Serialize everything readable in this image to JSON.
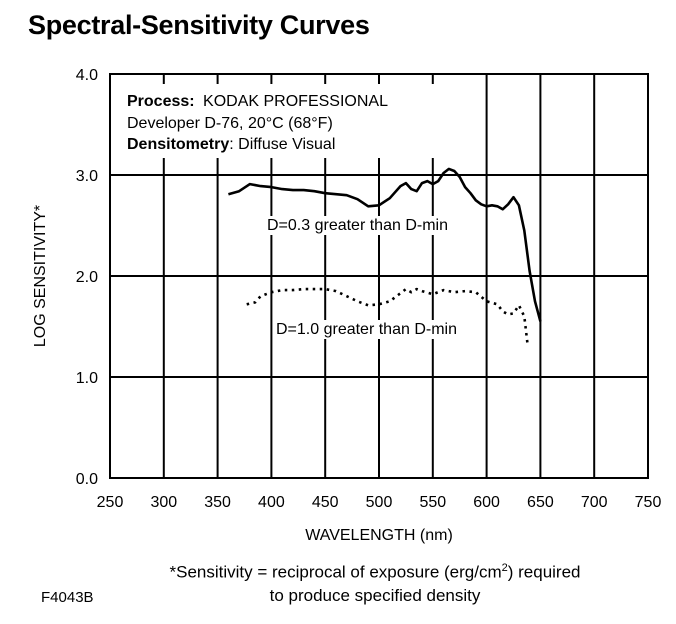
{
  "chart_data": {
    "type": "line",
    "title": "Spectral-Sensitivity Curves",
    "xlabel": "WAVELENGTH (nm)",
    "ylabel": "LOG SENSITIVITY*",
    "xlim": [
      250,
      750
    ],
    "ylim": [
      0.0,
      4.0
    ],
    "xticks": [
      250,
      300,
      350,
      400,
      450,
      500,
      550,
      600,
      650,
      700,
      750
    ],
    "yticks": [
      0.0,
      1.0,
      2.0,
      3.0,
      4.0
    ],
    "xtick_labels": [
      "250",
      "300",
      "350",
      "400",
      "450",
      "500",
      "550",
      "600",
      "650",
      "700",
      "750"
    ],
    "ytick_labels": [
      "0.0",
      "1.0",
      "2.0",
      "3.0",
      "4.0"
    ],
    "grid": true,
    "info_box": {
      "process_label": "Process:",
      "process_value": "KODAK PROFESSIONAL",
      "process_line2": "Developer D-76, 20°C (68°F)",
      "densitometry_label": "Densitometry",
      "densitometry_value": ": Diffuse Visual"
    },
    "series": [
      {
        "label": "D=0.3 greater than D-min",
        "line_style": "solid",
        "x": [
          360,
          370,
          380,
          390,
          400,
          410,
          420,
          430,
          440,
          450,
          460,
          470,
          480,
          490,
          500,
          510,
          515,
          520,
          525,
          530,
          535,
          540,
          545,
          550,
          555,
          560,
          565,
          570,
          575,
          580,
          585,
          590,
          595,
          600,
          605,
          610,
          615,
          620,
          625,
          630,
          635,
          640,
          645,
          650
        ],
        "y": [
          2.81,
          2.84,
          2.91,
          2.89,
          2.88,
          2.86,
          2.85,
          2.85,
          2.84,
          2.82,
          2.81,
          2.8,
          2.76,
          2.69,
          2.7,
          2.77,
          2.83,
          2.89,
          2.92,
          2.86,
          2.84,
          2.92,
          2.94,
          2.91,
          2.94,
          3.02,
          3.06,
          3.04,
          2.98,
          2.88,
          2.82,
          2.75,
          2.71,
          2.69,
          2.7,
          2.69,
          2.66,
          2.71,
          2.78,
          2.7,
          2.45,
          2.05,
          1.75,
          1.55
        ]
      },
      {
        "label": "D=1.0 greater than D-min",
        "line_style": "dotted",
        "x": [
          377,
          385,
          390,
          400,
          410,
          420,
          430,
          440,
          450,
          460,
          470,
          480,
          490,
          500,
          510,
          520,
          525,
          530,
          535,
          540,
          550,
          560,
          570,
          580,
          590,
          600,
          610,
          615,
          620,
          625,
          630,
          635,
          638
        ],
        "y": [
          1.72,
          1.74,
          1.8,
          1.84,
          1.86,
          1.86,
          1.87,
          1.87,
          1.87,
          1.85,
          1.8,
          1.75,
          1.71,
          1.72,
          1.75,
          1.83,
          1.87,
          1.84,
          1.87,
          1.85,
          1.82,
          1.86,
          1.84,
          1.85,
          1.84,
          1.75,
          1.72,
          1.65,
          1.62,
          1.63,
          1.71,
          1.6,
          1.33
        ]
      }
    ]
  },
  "footnote": {
    "line1_before_sup": "*Sensitivity = reciprocal of exposure (erg/cm",
    "sup": "2",
    "line1_after_sup": ") required",
    "line2": "to produce specified density"
  },
  "figure_id": "F4043B"
}
